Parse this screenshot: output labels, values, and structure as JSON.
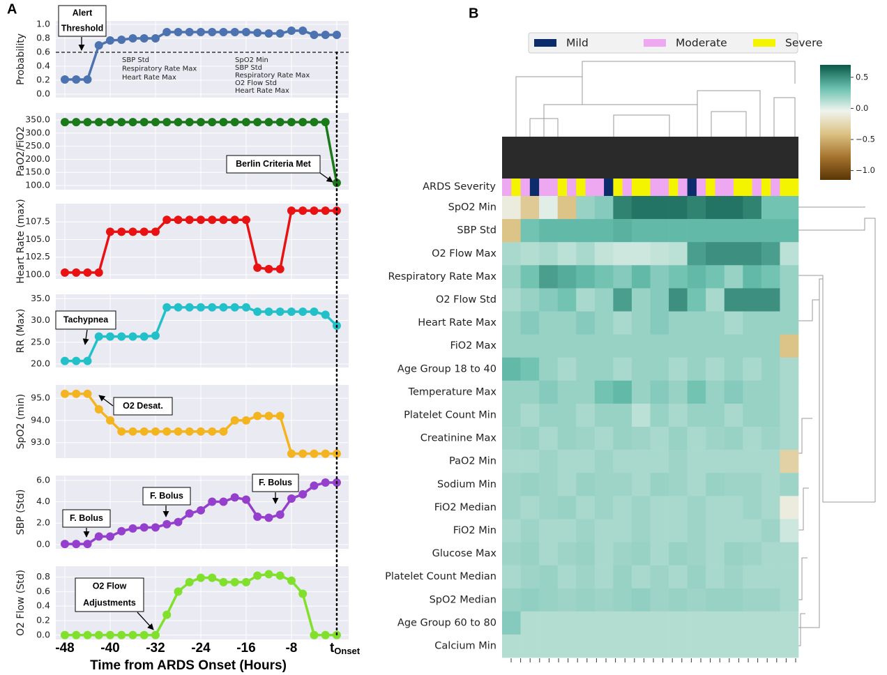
{
  "panel_labels": [
    "A",
    "B"
  ],
  "chart_data": [
    {
      "type": "line",
      "ylabel": "Probability",
      "color": "#4c72b0",
      "x": [
        -48,
        -46,
        -44,
        -42,
        -40,
        -38,
        -36,
        -34,
        -32,
        -30,
        -28,
        -26,
        -24,
        -22,
        -20,
        -18,
        -16,
        -14,
        -12,
        -10,
        -8,
        -6,
        -4,
        -2,
        0
      ],
      "values": [
        0.21,
        0.21,
        0.21,
        0.7,
        0.77,
        0.78,
        0.8,
        0.8,
        0.8,
        0.89,
        0.89,
        0.89,
        0.89,
        0.89,
        0.89,
        0.89,
        0.89,
        0.88,
        0.87,
        0.87,
        0.91,
        0.91,
        0.85,
        0.85,
        0.85
      ],
      "xlim": [
        -49.6,
        2.1
      ],
      "ylim": [
        -0.05,
        1.05
      ],
      "xticks": [
        -48,
        -40,
        -32,
        -24,
        -16,
        -8,
        {
          "value": 0,
          "label": "t",
          "subscript": "Onset"
        }
      ],
      "yticks": [
        {
          "value": 0,
          "label": "0.0"
        },
        0.2,
        0.4,
        0.6,
        0.8,
        {
          "value": 1,
          "label": "1.0"
        }
      ],
      "threshold": 0.6,
      "grid": true,
      "annotations": [
        {
          "lines": [
            "Alert",
            "Threshold"
          ]
        }
      ],
      "notes": [
        [
          "SBP Std",
          "Respiratory Rate Max",
          "Heart Rate Max"
        ],
        [
          "SpO2 Min",
          "SBP Std",
          "Respiratory Rate Max",
          "O2 Flow Std",
          "Heart Rate Max"
        ]
      ]
    },
    {
      "type": "line",
      "ylabel": "PaO2/FiO2",
      "color": "#1a7a1a",
      "x": [
        -48,
        -46,
        -44,
        -42,
        -40,
        -38,
        -36,
        -34,
        -32,
        -30,
        -28,
        -26,
        -24,
        -22,
        -20,
        -18,
        -16,
        -14,
        -12,
        -10,
        -8,
        -6,
        -4,
        -2,
        0
      ],
      "values": [
        342,
        342,
        342,
        342,
        342,
        342,
        342,
        342,
        342,
        342,
        342,
        342,
        342,
        342,
        342,
        342,
        342,
        342,
        342,
        342,
        342,
        342,
        342,
        342,
        110
      ],
      "xlim": [
        -49.6,
        2.1
      ],
      "ylim": [
        84,
        377
      ],
      "xticks": [
        -48,
        -40,
        -32,
        -24,
        -16,
        -8,
        {
          "value": 0,
          "label": "t",
          "subscript": "Onset"
        }
      ],
      "yticks": [
        {
          "value": 100,
          "label": "100.0"
        },
        {
          "value": 150,
          "label": "150.0"
        },
        {
          "value": 200,
          "label": "200.0"
        },
        {
          "value": 250,
          "label": "250.0"
        },
        {
          "value": 300,
          "label": "300.0"
        },
        {
          "value": 350,
          "label": "350.0"
        }
      ],
      "grid": true,
      "annotations": [
        {
          "lines": [
            "Berlin Criteria Met"
          ]
        }
      ]
    },
    {
      "type": "line",
      "ylabel": "Heart Rate (max)",
      "color": "#e81212",
      "x": [
        -48,
        -46,
        -44,
        -42,
        -40,
        -38,
        -36,
        -34,
        -32,
        -30,
        -28,
        -26,
        -24,
        -22,
        -20,
        -18,
        -16,
        -14,
        -12,
        -10,
        -8,
        -6,
        -4,
        -2,
        0
      ],
      "values": [
        100.3,
        100.3,
        100.3,
        100.3,
        106.1,
        106.1,
        106.1,
        106.1,
        106.1,
        107.8,
        107.8,
        107.8,
        107.8,
        107.8,
        107.8,
        107.8,
        107.8,
        101.0,
        100.8,
        100.8,
        109.1,
        109.1,
        109.1,
        109.1,
        109.1
      ],
      "xlim": [
        -49.6,
        2.1
      ],
      "ylim": [
        99.4,
        110.1
      ],
      "xticks": [
        -48,
        -40,
        -32,
        -24,
        -16,
        -8,
        {
          "value": 0,
          "label": "t",
          "subscript": "Onset"
        }
      ],
      "yticks": [
        {
          "value": 100,
          "label": "100.0"
        },
        102.5,
        {
          "value": 105,
          "label": "105.0"
        },
        107.5
      ],
      "grid": true
    },
    {
      "type": "line",
      "ylabel": "RR (Max)",
      "color": "#22c0c8",
      "x": [
        -48,
        -46,
        -44,
        -42,
        -40,
        -38,
        -36,
        -34,
        -32,
        -30,
        -28,
        -26,
        -24,
        -22,
        -20,
        -18,
        -16,
        -14,
        -12,
        -10,
        -8,
        -6,
        -4,
        -2,
        0
      ],
      "values": [
        20.7,
        20.7,
        20.7,
        26.3,
        26.3,
        26.3,
        26.3,
        26.3,
        26.5,
        33.0,
        33.0,
        33.0,
        33.0,
        33.0,
        33.0,
        33.0,
        33.0,
        32.0,
        32.0,
        32.0,
        32.0,
        32.0,
        32.0,
        31.3,
        28.8
      ],
      "xlim": [
        -49.6,
        2.1
      ],
      "ylim": [
        19.2,
        36.0
      ],
      "xticks": [
        -48,
        -40,
        -32,
        -24,
        -16,
        -8,
        {
          "value": 0,
          "label": "t",
          "subscript": "Onset"
        }
      ],
      "yticks": [
        {
          "value": 20,
          "label": "20.0"
        },
        {
          "value": 25,
          "label": "25.0"
        },
        {
          "value": 30,
          "label": "30.0"
        },
        {
          "value": 35,
          "label": "35.0"
        }
      ],
      "grid": true,
      "annotations": [
        {
          "lines": [
            "Tachypnea"
          ]
        }
      ]
    },
    {
      "type": "line",
      "ylabel": "SpO2 (min)",
      "color": "#f4b420",
      "x": [
        -48,
        -46,
        -44,
        -42,
        -40,
        -38,
        -36,
        -34,
        -32,
        -30,
        -28,
        -26,
        -24,
        -22,
        -20,
        -18,
        -16,
        -14,
        -12,
        -10,
        -8,
        -6,
        -4,
        -2,
        0
      ],
      "values": [
        95.2,
        95.2,
        95.2,
        94.5,
        94.0,
        93.5,
        93.5,
        93.5,
        93.5,
        93.5,
        93.5,
        93.5,
        93.5,
        93.5,
        93.5,
        94.0,
        94.0,
        94.2,
        94.2,
        94.2,
        92.5,
        92.5,
        92.5,
        92.5,
        92.5
      ],
      "xlim": [
        -49.6,
        2.1
      ],
      "ylim": [
        92.3,
        95.6
      ],
      "xticks": [
        -48,
        -40,
        -32,
        -24,
        -16,
        -8,
        {
          "value": 0,
          "label": "t",
          "subscript": "Onset"
        }
      ],
      "yticks": [
        {
          "value": 93,
          "label": "93.0"
        },
        {
          "value": 94,
          "label": "94.0"
        },
        {
          "value": 95,
          "label": "95.0"
        }
      ],
      "grid": true,
      "annotations": [
        {
          "lines": [
            "O2 Desat."
          ]
        }
      ]
    },
    {
      "type": "line",
      "ylabel": "SBP (Std)",
      "color": "#9440cc",
      "x": [
        -48,
        -46,
        -44,
        -42,
        -40,
        -38,
        -36,
        -34,
        -32,
        -30,
        -28,
        -26,
        -24,
        -22,
        -20,
        -18,
        -16,
        -14,
        -12,
        -10,
        -8,
        -6,
        -4,
        -2,
        0
      ],
      "values": [
        0.05,
        0.05,
        0.05,
        0.75,
        0.75,
        1.25,
        1.5,
        1.6,
        1.6,
        1.9,
        2.1,
        2.9,
        3.2,
        4.0,
        4.0,
        4.4,
        4.2,
        2.6,
        2.5,
        2.8,
        4.3,
        4.7,
        5.5,
        5.8,
        5.8
      ],
      "xlim": [
        -49.6,
        2.1
      ],
      "ylim": [
        -0.4,
        6.45
      ],
      "xticks": [
        -48,
        -40,
        -32,
        -24,
        -16,
        -8,
        {
          "value": 0,
          "label": "t",
          "subscript": "Onset"
        }
      ],
      "yticks": [
        {
          "value": 0,
          "label": "0.0"
        },
        {
          "value": 2,
          "label": "2.0"
        },
        {
          "value": 4,
          "label": "4.0"
        },
        {
          "value": 6,
          "label": "6.0"
        }
      ],
      "grid": true,
      "annotations": [
        {
          "lines": [
            "F. Bolus"
          ]
        },
        {
          "lines": [
            "F. Bolus"
          ]
        },
        {
          "lines": [
            "F. Bolus"
          ]
        }
      ]
    },
    {
      "type": "line",
      "ylabel": "O2 Flow (Std)",
      "xlabel": "Time from ARDS Onset (Hours)",
      "color": "#80e02c",
      "x": [
        -48,
        -46,
        -44,
        -42,
        -40,
        -38,
        -36,
        -34,
        -32,
        -30,
        -28,
        -26,
        -24,
        -22,
        -20,
        -18,
        -16,
        -14,
        -12,
        -10,
        -8,
        -6,
        -4,
        -2,
        0
      ],
      "values": [
        0,
        0,
        0,
        0,
        0,
        0,
        0,
        0,
        0,
        0.28,
        0.6,
        0.73,
        0.79,
        0.79,
        0.73,
        0.73,
        0.73,
        0.82,
        0.84,
        0.82,
        0.75,
        0.57,
        0,
        0,
        0
      ],
      "xlim": [
        -49.6,
        2.1
      ],
      "ylim": [
        -0.06,
        0.95
      ],
      "xticks": [
        -48,
        -40,
        -32,
        -24,
        -16,
        -8,
        {
          "value": 0,
          "label": "t",
          "subscript": "Onset"
        }
      ],
      "yticks": [
        {
          "value": 0,
          "label": "0.0"
        },
        0.2,
        0.4,
        0.6,
        0.8
      ],
      "grid": true,
      "annotations": [
        {
          "lines": [
            "O2 Flow",
            "Adjustments"
          ]
        }
      ]
    },
    {
      "type": "heatmap",
      "severity_label": "ARDS Severity",
      "series": [
        {
          "name": "Mild",
          "color": "#0d2c6c"
        },
        {
          "name": "Moderate",
          "color": "#eea8f2"
        },
        {
          "name": "Severe",
          "color": "#f4f400"
        }
      ],
      "severity": [
        "Moderate",
        "Severe",
        "Moderate",
        "Mild",
        "Moderate",
        "Moderate",
        "Severe",
        "Moderate",
        "Severe",
        "Moderate",
        "Moderate",
        "Mild",
        "Severe",
        "Moderate",
        "Severe",
        "Severe",
        "Moderate",
        "Moderate",
        "Severe",
        "Moderate",
        "Mild",
        "Moderate",
        "Severe",
        "Moderate",
        "Moderate",
        "Severe",
        "Severe",
        "Moderate",
        "Severe",
        "Moderate",
        "Severe",
        "Severe"
      ],
      "rows": [
        "SpO2 Min",
        "SBP Std",
        "O2 Flow Max",
        "Respiratory Rate Max",
        "O2 Flow Std",
        "Heart Rate Max",
        "FiO2 Max",
        "Age Group 18 to 40",
        "Temperature Max",
        "Platelet Count Min",
        "Creatinine Max",
        "PaO2 Min",
        "Sodium Min",
        "FiO2 Median",
        "FiO2 Min",
        "Glucose Max",
        "Platelet Count Median",
        "SpO2 Median",
        "Age Group 60 to 80",
        "Calcium Min"
      ],
      "values": [
        [
          -0.1,
          -0.35,
          0.0,
          -0.4,
          0.2,
          0.25,
          0.55,
          0.6,
          0.6,
          0.6,
          0.55,
          0.6,
          0.6,
          0.55,
          0.3,
          0.3
        ],
        [
          -0.4,
          0.3,
          0.35,
          0.35,
          0.35,
          0.35,
          0.38,
          0.35,
          0.35,
          0.35,
          0.35,
          0.35,
          0.35,
          0.35,
          0.35,
          0.35
        ],
        [
          0.15,
          0.12,
          0.15,
          0.1,
          0.15,
          0.08,
          0.05,
          0.05,
          0.08,
          0.1,
          0.45,
          0.5,
          0.5,
          0.5,
          0.45,
          0.1
        ],
        [
          0.2,
          0.3,
          0.45,
          0.4,
          0.35,
          0.3,
          0.25,
          0.35,
          0.25,
          0.3,
          0.35,
          0.3,
          0.2,
          0.35,
          0.3,
          0.2
        ],
        [
          0.15,
          0.2,
          0.25,
          0.3,
          0.15,
          0.2,
          0.45,
          0.2,
          0.25,
          0.5,
          0.3,
          0.15,
          0.5,
          0.5,
          0.5,
          0.2
        ],
        [
          0.2,
          0.25,
          0.2,
          0.2,
          0.25,
          0.2,
          0.15,
          0.2,
          0.25,
          0.2,
          0.2,
          0.2,
          0.15,
          0.2,
          0.2,
          0.2
        ],
        [
          0.2,
          0.2,
          0.2,
          0.2,
          0.2,
          0.2,
          0.2,
          0.2,
          0.2,
          0.2,
          0.2,
          0.2,
          0.2,
          0.2,
          0.2,
          -0.4
        ],
        [
          0.35,
          0.3,
          0.2,
          0.15,
          0.2,
          0.2,
          0.15,
          0.2,
          0.2,
          0.15,
          0.2,
          0.15,
          0.2,
          0.15,
          0.2,
          0.15
        ],
        [
          0.2,
          0.2,
          0.25,
          0.2,
          0.2,
          0.3,
          0.35,
          0.2,
          0.25,
          0.2,
          0.3,
          0.2,
          0.25,
          0.2,
          0.2,
          0.15
        ],
        [
          0.2,
          0.15,
          0.2,
          0.2,
          0.15,
          0.2,
          0.2,
          0.1,
          0.2,
          0.15,
          0.2,
          0.2,
          0.15,
          0.2,
          0.2,
          0.15
        ],
        [
          0.18,
          0.2,
          0.15,
          0.2,
          0.18,
          0.15,
          0.2,
          0.18,
          0.15,
          0.2,
          0.15,
          0.18,
          0.2,
          0.15,
          0.18,
          0.15
        ],
        [
          0.15,
          0.15,
          0.18,
          0.15,
          0.15,
          0.18,
          0.15,
          0.15,
          0.15,
          0.18,
          0.15,
          0.15,
          0.15,
          0.15,
          0.15,
          -0.3
        ],
        [
          0.18,
          0.2,
          0.18,
          0.15,
          0.2,
          0.18,
          0.18,
          0.15,
          0.2,
          0.18,
          0.15,
          0.2,
          0.18,
          0.18,
          0.15,
          0.18
        ],
        [
          0.18,
          0.15,
          0.18,
          0.2,
          0.15,
          0.18,
          0.15,
          0.18,
          0.15,
          0.15,
          0.18,
          0.15,
          0.15,
          0.18,
          0.15,
          -0.1
        ],
        [
          0.15,
          0.18,
          0.15,
          0.15,
          0.18,
          0.15,
          0.15,
          0.18,
          0.15,
          0.15,
          0.18,
          0.15,
          0.15,
          0.15,
          0.18,
          0.05
        ],
        [
          0.18,
          0.2,
          0.15,
          0.18,
          0.2,
          0.15,
          0.18,
          0.2,
          0.15,
          0.2,
          0.18,
          0.15,
          0.2,
          0.18,
          0.15,
          0.15
        ],
        [
          0.15,
          0.18,
          0.2,
          0.15,
          0.18,
          0.15,
          0.2,
          0.15,
          0.18,
          0.15,
          0.2,
          0.15,
          0.18,
          0.15,
          0.15,
          0.15
        ],
        [
          0.2,
          0.22,
          0.2,
          0.18,
          0.2,
          0.18,
          0.2,
          0.22,
          0.18,
          0.2,
          0.18,
          0.2,
          0.2,
          0.18,
          0.18,
          0.15
        ],
        [
          0.25,
          0.12,
          0.12,
          0.12,
          0.12,
          0.12,
          0.12,
          0.12,
          0.12,
          0.12,
          0.12,
          0.12,
          0.12,
          0.12,
          0.12,
          0.12
        ],
        [
          0.12,
          0.12,
          0.12,
          0.12,
          0.12,
          0.12,
          0.12,
          0.12,
          0.12,
          0.12,
          0.12,
          0.12,
          0.12,
          0.12,
          0.12,
          0.12
        ]
      ],
      "clim": [
        -1.15,
        0.7
      ],
      "colormap": [
        "#5a3506",
        "#a5742e",
        "#dcc284",
        "#eef4ee",
        "#68bfae",
        "#0a5848"
      ],
      "colorbar_ticks": [
        0.5,
        {
          "value": 0,
          "label": "0.0"
        },
        {
          "value": -0.5,
          "label": "−0.5"
        },
        {
          "value": -1,
          "label": "−1.0"
        }
      ]
    }
  ]
}
